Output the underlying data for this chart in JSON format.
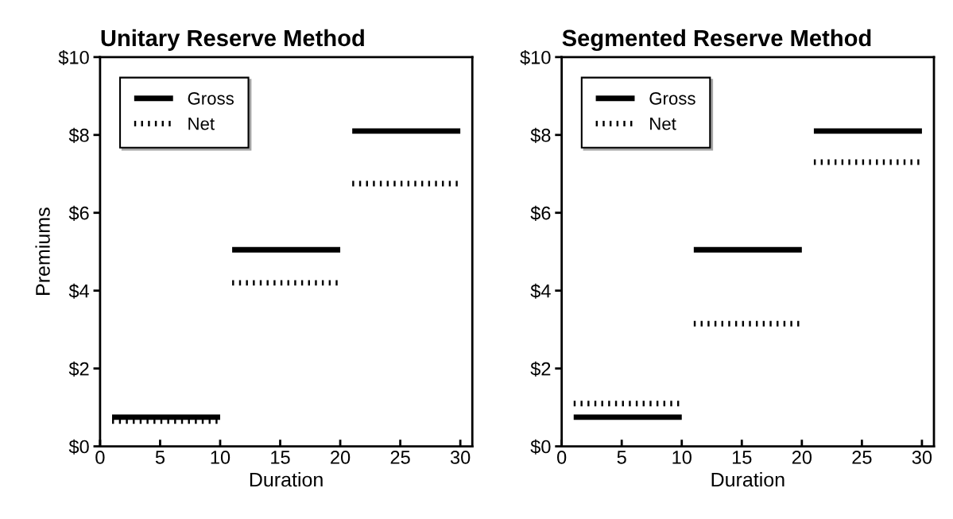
{
  "chart_data": [
    {
      "type": "line",
      "title": "Unitary Reserve Method",
      "xlabel": "Duration",
      "ylabel": "Premiums",
      "series": [
        {
          "name": "Gross",
          "color": "#000000",
          "line_style": "solid",
          "x": [
            1,
            10,
            10.5,
            11,
            20,
            20.5,
            21,
            30
          ],
          "values": [
            0.75,
            0.75,
            null,
            5.05,
            5.05,
            null,
            8.1,
            8.1
          ]
        },
        {
          "name": "Net",
          "color": "#000000",
          "line_style": "dotted",
          "x": [
            1,
            10,
            10.5,
            11,
            20,
            20.5,
            21,
            30
          ],
          "values": [
            0.65,
            0.65,
            null,
            4.2,
            4.2,
            null,
            6.75,
            6.75
          ]
        }
      ],
      "xlim": [
        0,
        31
      ],
      "xticks": [
        0,
        5,
        10,
        15,
        20,
        25,
        30
      ],
      "ylim": [
        0,
        10
      ],
      "yticks": [
        {
          "value": 0,
          "label": "$0"
        },
        {
          "value": 2,
          "label": "$2"
        },
        {
          "value": 4,
          "label": "$4"
        },
        {
          "value": 6,
          "label": "$6"
        },
        {
          "value": 8,
          "label": "$8"
        },
        {
          "value": 10,
          "label": "$10"
        }
      ],
      "legend": "top left",
      "grid": false,
      "marker": "none"
    },
    {
      "type": "line",
      "title": "Segmented Reserve Method",
      "xlabel": "Duration",
      "series": [
        {
          "name": "Gross",
          "color": "#000000",
          "line_style": "solid",
          "x": [
            1,
            10,
            10.5,
            11,
            20,
            20.5,
            21,
            30
          ],
          "values": [
            0.75,
            0.75,
            null,
            5.05,
            5.05,
            null,
            8.1,
            8.1
          ]
        },
        {
          "name": "Net",
          "color": "#000000",
          "line_style": "dotted",
          "x": [
            1,
            10,
            10.5,
            11,
            20,
            20.5,
            21,
            30
          ],
          "values": [
            1.1,
            1.1,
            null,
            3.15,
            3.15,
            null,
            7.3,
            7.3
          ]
        }
      ],
      "xlim": [
        0,
        31
      ],
      "xticks": [
        0,
        5,
        10,
        15,
        20,
        25,
        30
      ],
      "ylim": [
        0,
        10
      ],
      "yticks": [
        {
          "value": 0,
          "label": "$0"
        },
        {
          "value": 2,
          "label": "$2"
        },
        {
          "value": 4,
          "label": "$4"
        },
        {
          "value": 6,
          "label": "$6"
        },
        {
          "value": 8,
          "label": "$8"
        },
        {
          "value": 10,
          "label": "$10"
        }
      ],
      "legend": "top left",
      "grid": false,
      "marker": "none"
    }
  ]
}
